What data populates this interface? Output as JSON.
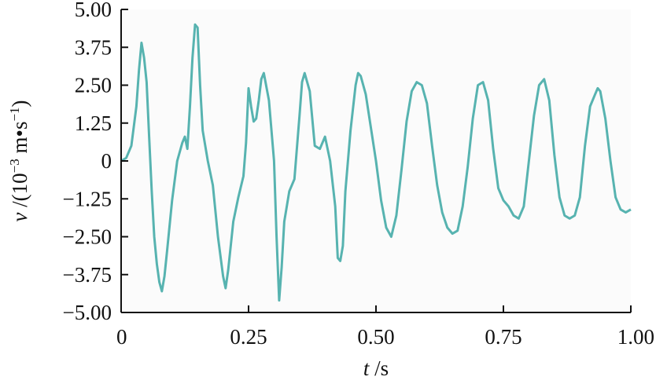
{
  "chart_data": {
    "type": "line",
    "xlabel": {
      "var": "t",
      "unit": " /s"
    },
    "ylabel": {
      "var": "v",
      "unit_pre": " /(10",
      "unit_exp1": "−3",
      "unit_mid": " m•s",
      "unit_exp2": "−1",
      "unit_post": ")"
    },
    "xlim": [
      0,
      1.0
    ],
    "ylim": [
      -5.0,
      5.0
    ],
    "xticks": [
      0,
      0.25,
      0.5,
      0.75,
      1.0
    ],
    "xtick_labels": [
      "0",
      "0.25",
      "0.50",
      "0.75",
      "1.00"
    ],
    "yticks": [
      5.0,
      3.75,
      2.5,
      1.25,
      0,
      -1.25,
      -2.5,
      -3.75,
      -5.0
    ],
    "ytick_labels": [
      "5.00",
      "3.75",
      "2.50",
      "1.25",
      "0",
      "−1.25",
      "−2.50",
      "−3.75",
      "−5.00"
    ],
    "grid": false,
    "legend": "none",
    "line_color": "#57b3b0",
    "series": [
      {
        "x": [
          0.0,
          0.01,
          0.02,
          0.03,
          0.035,
          0.04,
          0.045,
          0.05,
          0.055,
          0.06,
          0.065,
          0.07,
          0.075,
          0.08,
          0.085,
          0.09,
          0.1,
          0.11,
          0.12,
          0.125,
          0.13,
          0.135,
          0.14,
          0.145,
          0.15,
          0.155,
          0.16,
          0.17,
          0.18,
          0.19,
          0.2,
          0.205,
          0.21,
          0.22,
          0.23,
          0.24,
          0.245,
          0.25,
          0.255,
          0.26,
          0.265,
          0.27,
          0.275,
          0.28,
          0.29,
          0.3,
          0.305,
          0.31,
          0.315,
          0.32,
          0.33,
          0.34,
          0.35,
          0.355,
          0.36,
          0.37,
          0.38,
          0.39,
          0.4,
          0.41,
          0.42,
          0.425,
          0.43,
          0.435,
          0.44,
          0.45,
          0.46,
          0.465,
          0.47,
          0.48,
          0.49,
          0.5,
          0.51,
          0.52,
          0.53,
          0.54,
          0.55,
          0.56,
          0.57,
          0.58,
          0.59,
          0.6,
          0.61,
          0.62,
          0.63,
          0.64,
          0.65,
          0.66,
          0.67,
          0.68,
          0.69,
          0.7,
          0.71,
          0.72,
          0.73,
          0.74,
          0.75,
          0.76,
          0.77,
          0.78,
          0.79,
          0.8,
          0.81,
          0.82,
          0.83,
          0.84,
          0.85,
          0.86,
          0.87,
          0.88,
          0.89,
          0.9,
          0.91,
          0.92,
          0.93,
          0.935,
          0.94,
          0.95,
          0.96,
          0.97,
          0.98,
          0.99,
          1.0
        ],
        "values": [
          0.0,
          0.1,
          0.5,
          1.8,
          3.0,
          3.9,
          3.4,
          2.6,
          0.8,
          -1.0,
          -2.5,
          -3.4,
          -4.0,
          -4.3,
          -3.8,
          -3.0,
          -1.3,
          0.0,
          0.6,
          0.8,
          0.4,
          1.8,
          3.4,
          4.5,
          4.4,
          2.5,
          1.0,
          0.0,
          -0.8,
          -2.5,
          -3.8,
          -4.2,
          -3.6,
          -2.0,
          -1.2,
          -0.5,
          0.6,
          2.4,
          1.8,
          1.3,
          1.4,
          2.0,
          2.7,
          2.9,
          2.0,
          0.0,
          -2.5,
          -4.6,
          -3.5,
          -2.0,
          -1.0,
          -0.6,
          1.5,
          2.6,
          2.9,
          2.3,
          0.5,
          0.4,
          0.8,
          0.0,
          -1.5,
          -3.2,
          -3.3,
          -2.8,
          -1.0,
          1.0,
          2.5,
          2.9,
          2.8,
          2.2,
          1.1,
          0.0,
          -1.3,
          -2.2,
          -2.5,
          -1.8,
          -0.3,
          1.3,
          2.3,
          2.6,
          2.5,
          1.9,
          0.5,
          -0.8,
          -1.7,
          -2.2,
          -2.4,
          -2.3,
          -1.5,
          -0.2,
          1.4,
          2.5,
          2.6,
          2.0,
          0.4,
          -0.9,
          -1.3,
          -1.5,
          -1.8,
          -1.9,
          -1.5,
          0.0,
          1.5,
          2.5,
          2.7,
          2.0,
          0.2,
          -1.2,
          -1.8,
          -1.9,
          -1.8,
          -1.2,
          0.5,
          1.8,
          2.2,
          2.4,
          2.3,
          1.4,
          0.0,
          -1.2,
          -1.6,
          -1.7,
          -1.6
        ]
      }
    ]
  }
}
